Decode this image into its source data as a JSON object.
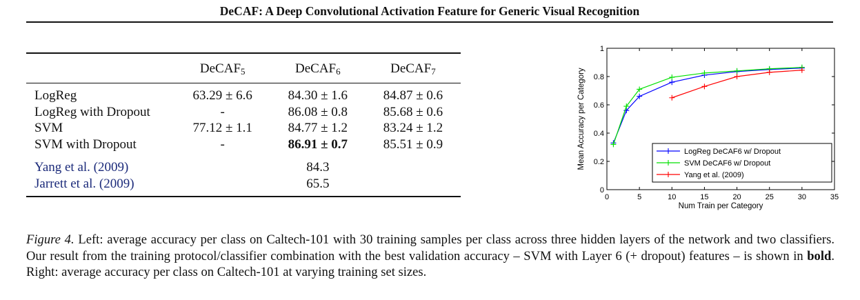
{
  "header": "DeCAF: A Deep Convolutional Activation Feature for Generic Visual Recognition",
  "table": {
    "columns": [
      {
        "base": "DeCAF",
        "sub": "5"
      },
      {
        "base": "DeCAF",
        "sub": "6"
      },
      {
        "base": "DeCAF",
        "sub": "7"
      }
    ],
    "rows": [
      {
        "name": "LogReg",
        "cells": [
          "63.29 ± 6.6",
          "84.30 ± 1.6",
          "84.87 ± 0.6"
        ]
      },
      {
        "name": "LogReg with Dropout",
        "cells": [
          "-",
          "86.08 ± 0.8",
          "85.68 ± 0.6"
        ]
      },
      {
        "name": "SVM",
        "cells": [
          "77.12 ± 1.1",
          "84.77 ± 1.2",
          "83.24 ± 1.2"
        ]
      },
      {
        "name": "SVM with Dropout",
        "cells": [
          "-",
          "86.91 ± 0.7",
          "85.51 ± 0.9"
        ]
      }
    ],
    "baselines": [
      {
        "author": "Yang et al. (",
        "year": "2009",
        "close": ")",
        "value": "84.3"
      },
      {
        "author": "Jarrett et al. (",
        "year": "2009",
        "close": ")",
        "value": "65.5"
      }
    ]
  },
  "chart_data": {
    "type": "line",
    "xlabel": "Num Train per Category",
    "ylabel": "Mean Accuracy per Category",
    "xlim": [
      0,
      35
    ],
    "ylim": [
      0,
      1
    ],
    "xticks": [
      "0",
      "5",
      "10",
      "15",
      "20",
      "25",
      "30",
      "35"
    ],
    "yticks": [
      "0",
      "0.2",
      "0.4",
      "0.6",
      "0.8",
      "1"
    ],
    "grid": false,
    "legend_position": "bottom-right",
    "series": [
      {
        "name": "LogReg DeCAF6 w/ Dropout",
        "color": "#0000ff",
        "x": [
          1,
          3,
          5,
          10,
          15,
          20,
          25,
          30
        ],
        "y": [
          0.33,
          0.56,
          0.66,
          0.76,
          0.81,
          0.835,
          0.85,
          0.86
        ]
      },
      {
        "name": "SVM DeCAF6 w/ Dropout",
        "color": "#00e000",
        "x": [
          1,
          3,
          5,
          10,
          15,
          20,
          25,
          30
        ],
        "y": [
          0.32,
          0.59,
          0.71,
          0.795,
          0.825,
          0.84,
          0.855,
          0.865
        ]
      },
      {
        "name": "Yang et al. (2009)",
        "color": "#ff0000",
        "x": [
          10,
          15,
          20,
          25,
          30
        ],
        "y": [
          0.65,
          0.73,
          0.8,
          0.83,
          0.845
        ]
      }
    ]
  },
  "caption": {
    "label": "Figure 4.",
    "text_before_bold": " Left: average accuracy per class on Caltech-101 with 30 training samples per class across three hidden layers of the network and two classifiers. Our result from the training protocol/classifier combination with the best validation accuracy – SVM with Layer 6 (+ dropout) features – is shown in ",
    "bold": "bold",
    "text_after_bold": ". Right: average accuracy per class on Caltech-101 at varying training set sizes."
  }
}
